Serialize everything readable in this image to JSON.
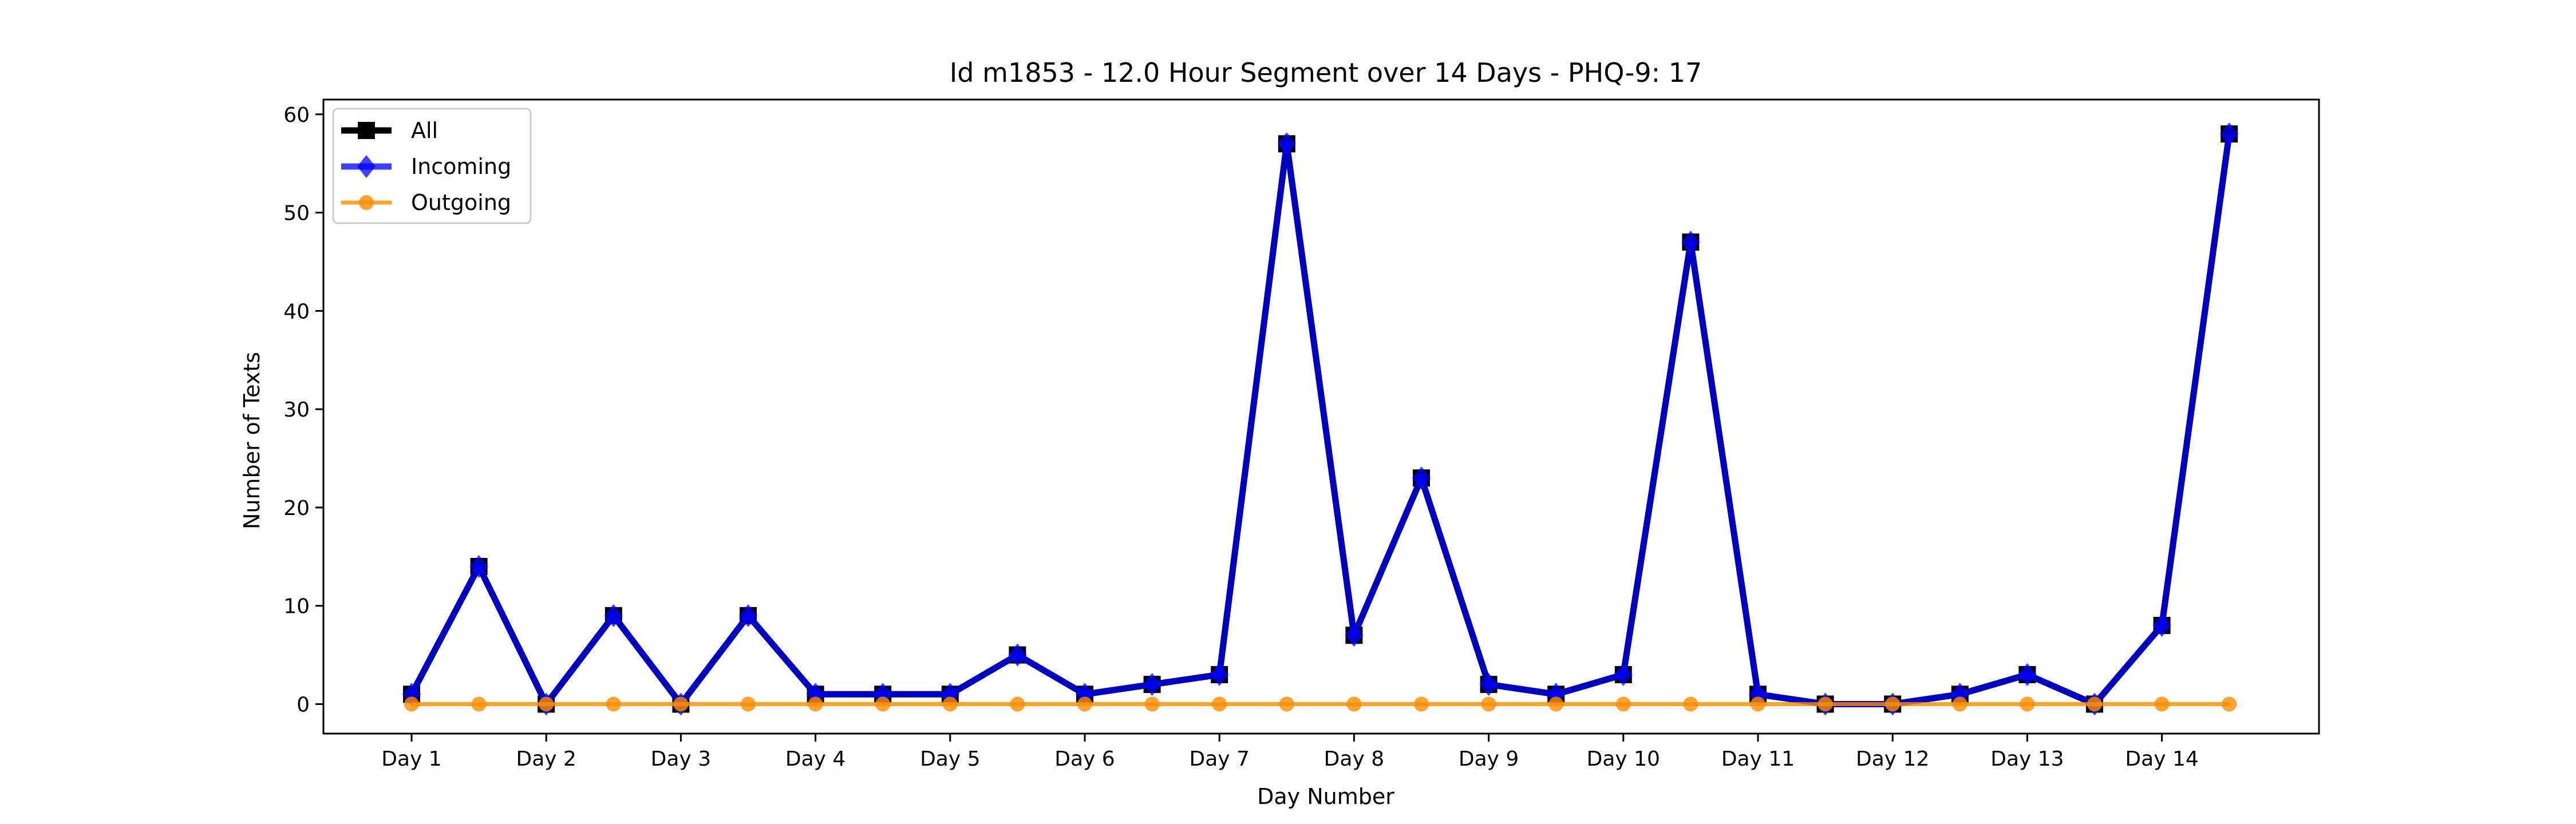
{
  "chart_data": {
    "type": "line",
    "title": "Id m1853 - 12.0 Hour Segment over 14 Days - PHQ-9: 17",
    "xlabel": "Day Number",
    "ylabel": "Number of Texts",
    "x_tick_labels": [
      "Day 1",
      "Day 2",
      "Day 3",
      "Day 4",
      "Day 5",
      "Day 6",
      "Day 7",
      "Day 8",
      "Day 9",
      "Day 10",
      "Day 11",
      "Day 12",
      "Day 13",
      "Day 14"
    ],
    "y_ticks": [
      0,
      10,
      20,
      30,
      40,
      50,
      60
    ],
    "ylim": [
      -3,
      61.5
    ],
    "legend_position": "upper-left",
    "grid": false,
    "series": [
      {
        "name": "All",
        "color": "#000000",
        "marker": "square",
        "values": [
          1,
          14,
          0,
          9,
          0,
          9,
          1,
          1,
          1,
          5,
          1,
          2,
          3,
          57,
          7,
          23,
          2,
          1,
          3,
          47,
          1,
          0,
          0,
          1,
          3,
          0,
          8,
          58
        ]
      },
      {
        "name": "Incoming",
        "color": "#0000ff",
        "marker": "diamond",
        "values": [
          1,
          14,
          0,
          9,
          0,
          9,
          1,
          1,
          1,
          5,
          1,
          2,
          3,
          57,
          7,
          23,
          2,
          1,
          3,
          47,
          1,
          0,
          0,
          1,
          3,
          0,
          8,
          58
        ]
      },
      {
        "name": "Outgoing",
        "color": "#ff8c00",
        "marker": "circle",
        "values": [
          0,
          0,
          0,
          0,
          0,
          0,
          0,
          0,
          0,
          0,
          0,
          0,
          0,
          0,
          0,
          0,
          0,
          0,
          0,
          0,
          0,
          0,
          0,
          0,
          0,
          0,
          0,
          0
        ]
      }
    ]
  }
}
